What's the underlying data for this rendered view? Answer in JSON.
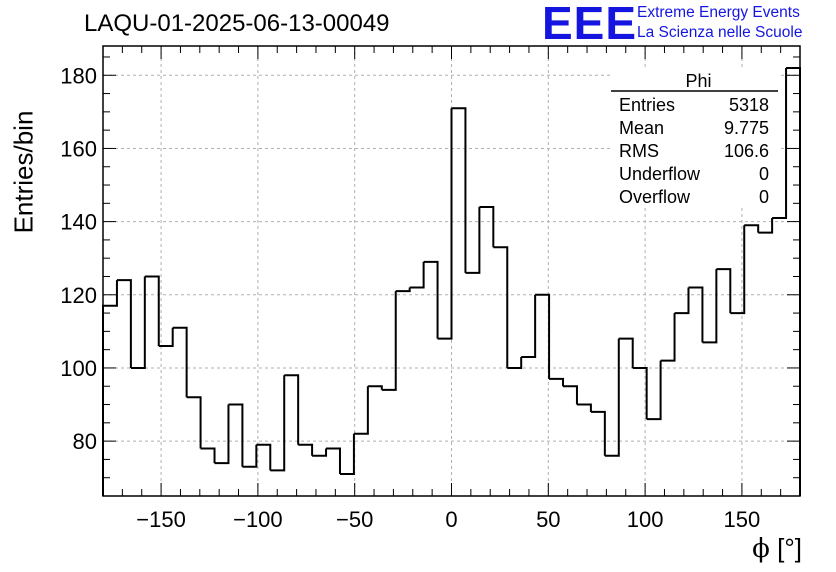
{
  "page_title": "LAQU-01-2025-06-13-00049",
  "logo": {
    "mark": "EEE",
    "line1": "Extreme Energy Events",
    "line2": "La Scienza nelle Scuole",
    "color": "#1515e0"
  },
  "stats_box": {
    "title": "Phi",
    "rows": [
      {
        "label": "Entries",
        "value": "5318"
      },
      {
        "label": "Mean",
        "value": "9.775"
      },
      {
        "label": "RMS",
        "value": "106.6"
      },
      {
        "label": "Underflow",
        "value": "0"
      },
      {
        "label": "Overflow",
        "value": "0"
      }
    ]
  },
  "axis_labels": {
    "x_symbol": "ϕ",
    "x_unit": "[°]",
    "y": "Entries/bin"
  },
  "chart_data": {
    "type": "bar",
    "histogram": true,
    "title": "LAQU-01-2025-06-13-00049",
    "xlabel": "ϕ [°]",
    "ylabel": "Entries/bin",
    "xlim": [
      -180,
      180
    ],
    "ylim": [
      65,
      188
    ],
    "bin_width": 7.2,
    "x_ticks": [
      -150,
      -100,
      -50,
      0,
      50,
      100,
      150
    ],
    "x_tick_labels": [
      "−150",
      "−100",
      "−50",
      "0",
      "50",
      "100",
      "150"
    ],
    "y_ticks": [
      80,
      100,
      120,
      140,
      160,
      180
    ],
    "y_tick_labels": [
      "80",
      "100",
      "120",
      "140",
      "160",
      "180"
    ],
    "grid": true,
    "values": [
      117,
      124,
      100,
      125,
      106,
      111,
      92,
      78,
      74,
      90,
      73,
      79,
      72,
      98,
      79,
      76,
      78,
      71,
      82,
      95,
      94,
      121,
      122,
      129,
      108,
      171,
      126,
      144,
      133,
      100,
      103,
      120,
      97,
      95,
      90,
      88,
      76,
      108,
      100,
      86,
      102,
      115,
      122,
      107,
      127,
      115,
      139,
      137,
      141,
      182
    ],
    "line_color": "#000000",
    "grid_color": "#b0b0b0"
  }
}
